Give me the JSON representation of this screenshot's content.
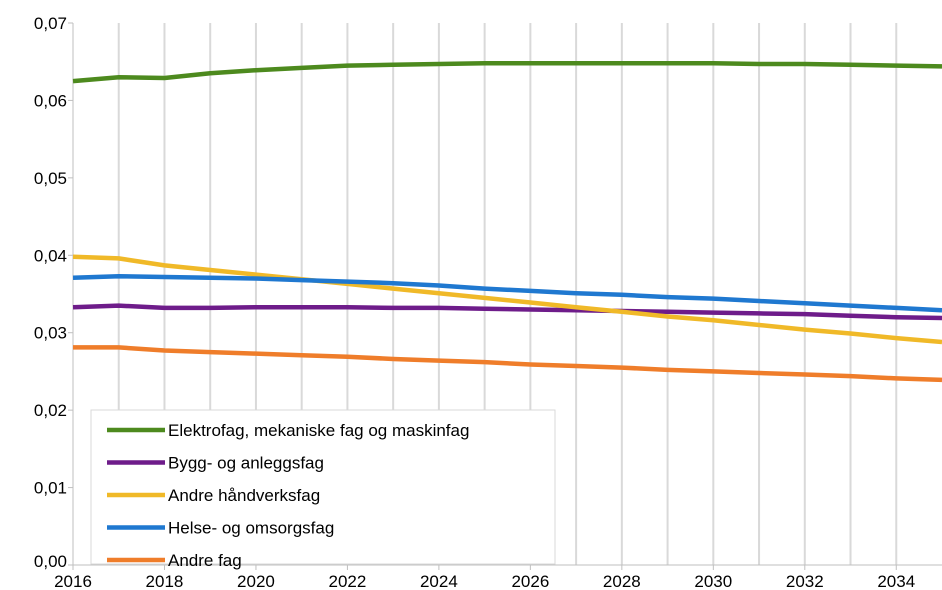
{
  "chart_data": {
    "type": "line",
    "title": "",
    "xlabel": "",
    "ylabel": "",
    "xlim": [
      2016,
      2035
    ],
    "ylim": [
      0,
      0.07
    ],
    "grid": "vertical",
    "legend_position": "bottom-left",
    "x_ticks": [
      "2016",
      "2018",
      "2020",
      "2022",
      "2024",
      "2026",
      "2028",
      "2030",
      "2032",
      "2034"
    ],
    "y_ticks": [
      "0,00",
      "0,01",
      "0,02",
      "0,03",
      "0,04",
      "0,05",
      "0,06",
      "0,07"
    ],
    "x": [
      2016,
      2017,
      2018,
      2019,
      2020,
      2021,
      2022,
      2023,
      2024,
      2025,
      2026,
      2027,
      2028,
      2029,
      2030,
      2031,
      2032,
      2033,
      2034,
      2035
    ],
    "series": [
      {
        "name": "Elektrofag, mekaniske fag og maskinfag",
        "color": "#4d8a1e",
        "values": [
          0.0625,
          0.063,
          0.0629,
          0.0635,
          0.0639,
          0.0642,
          0.0645,
          0.0646,
          0.0647,
          0.0648,
          0.0648,
          0.0648,
          0.0648,
          0.0648,
          0.0648,
          0.0647,
          0.0647,
          0.0646,
          0.0645,
          0.0644
        ]
      },
      {
        "name": "Bygg- og anleggsfag",
        "color": "#6e1c8a",
        "values": [
          0.0333,
          0.0335,
          0.0332,
          0.0332,
          0.0333,
          0.0333,
          0.0333,
          0.0332,
          0.0332,
          0.0331,
          0.033,
          0.0329,
          0.0328,
          0.0327,
          0.0326,
          0.0325,
          0.0324,
          0.0322,
          0.032,
          0.0319
        ]
      },
      {
        "name": "Andre håndverksfag",
        "color": "#f0b928",
        "values": [
          0.0398,
          0.0396,
          0.0387,
          0.0381,
          0.0375,
          0.0369,
          0.0363,
          0.0357,
          0.0351,
          0.0345,
          0.0339,
          0.0333,
          0.0327,
          0.0321,
          0.0316,
          0.031,
          0.0304,
          0.0299,
          0.0293,
          0.0288
        ]
      },
      {
        "name": "Helse- og omsorgsfag",
        "color": "#1f78d0",
        "values": [
          0.0371,
          0.0373,
          0.0372,
          0.0371,
          0.037,
          0.0368,
          0.0366,
          0.0364,
          0.0361,
          0.0357,
          0.0354,
          0.0351,
          0.0349,
          0.0346,
          0.0344,
          0.0341,
          0.0338,
          0.0335,
          0.0332,
          0.0329
        ]
      },
      {
        "name": "Andre fag",
        "color": "#ef7d2a",
        "values": [
          0.0281,
          0.0281,
          0.0277,
          0.0275,
          0.0273,
          0.0271,
          0.0269,
          0.0266,
          0.0264,
          0.0262,
          0.0259,
          0.0257,
          0.0255,
          0.0252,
          0.025,
          0.0248,
          0.0246,
          0.0244,
          0.0241,
          0.0239
        ]
      }
    ]
  }
}
